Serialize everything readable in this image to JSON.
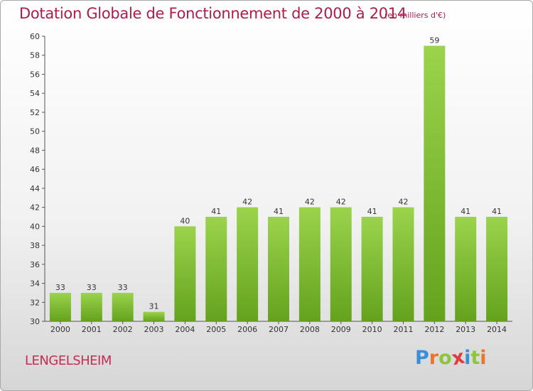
{
  "header": {
    "title": "Dotation Globale de Fonctionnement de 2000 à 2014",
    "subtitle": "(en milliers d'€)"
  },
  "footer": {
    "commune": "LENGELSHEIM",
    "logo_letters": [
      "P",
      "r",
      "o",
      "x",
      "i",
      "t",
      "i"
    ],
    "logo_colors": [
      "#3a8fd6",
      "#e8762b",
      "#8cc63f",
      "#e23b3b",
      "#3a8fd6",
      "#8cc63f",
      "#e8762b"
    ]
  },
  "colors": {
    "bar_light": "#9bd34c",
    "bar_dark": "#64a21d",
    "title": "#b01c4a"
  },
  "chart_data": {
    "type": "bar",
    "title": "Dotation Globale de Fonctionnement de 2000 à 2014",
    "subtitle": "(en milliers d'€)",
    "xlabel": "",
    "ylabel": "",
    "categories": [
      "2000",
      "2001",
      "2002",
      "2003",
      "2004",
      "2005",
      "2006",
      "2007",
      "2008",
      "2009",
      "2010",
      "2011",
      "2012",
      "2013",
      "2014"
    ],
    "values": [
      33,
      33,
      33,
      31,
      40,
      41,
      42,
      41,
      42,
      42,
      41,
      42,
      59,
      41,
      41
    ],
    "ylim": [
      30,
      60
    ],
    "yticks": [
      30,
      32,
      34,
      36,
      38,
      40,
      42,
      44,
      46,
      48,
      50,
      52,
      54,
      56,
      58,
      60
    ],
    "grid": false,
    "data_labels": true
  }
}
